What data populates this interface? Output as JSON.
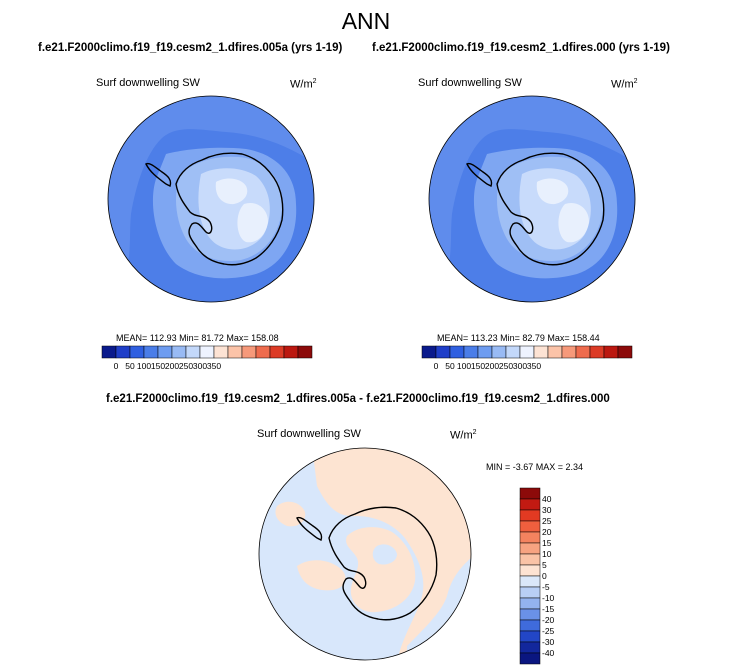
{
  "header": {
    "season": "ANN"
  },
  "panel_left": {
    "case_title": "f.e21.F2000climo.f19_f19.cesm2_1.dfires.005a (yrs 1-19)",
    "variable": "Surf downwelling SW",
    "units_base": "W/m",
    "units_exp": "2",
    "stats": "MEAN= 112.93  Min=  81.72  Max= 158.08"
  },
  "panel_right": {
    "case_title": "f.e21.F2000climo.f19_f19.cesm2_1.dfires.000 (yrs 1-19)",
    "variable": "Surf downwelling SW",
    "units_base": "W/m",
    "units_exp": "2",
    "stats": "MEAN= 113.23  Min=  82.79  Max= 158.44"
  },
  "panel_diff": {
    "case_title": "f.e21.F2000climo.f19_f19.cesm2_1.dfires.005a - f.e21.F2000climo.f19_f19.cesm2_1.dfires.000",
    "variable": "Surf downwelling SW",
    "units_base": "W/m",
    "units_exp": "2",
    "stats": "MIN =  -3.67 MAX =   2.34"
  },
  "colorbar_abs": {
    "tick_labels": [
      "0",
      "50",
      "100",
      "150",
      "200",
      "250",
      "300",
      "350"
    ],
    "colors": [
      "#0a1a8c",
      "#1f3ec8",
      "#2f5fe0",
      "#4a7de8",
      "#6e9cf0",
      "#98baf4",
      "#c3d8fa",
      "#eef3ff",
      "#fde3d4",
      "#fbc3a8",
      "#f6997a",
      "#ee6b4d",
      "#dc3b26",
      "#bb1810",
      "#8c0a0a"
    ]
  },
  "colorbar_diff": {
    "tick_labels": [
      "40",
      "30",
      "25",
      "20",
      "15",
      "10",
      "5",
      "0",
      "-5",
      "-10",
      "-15",
      "-20",
      "-25",
      "-30",
      "-40"
    ],
    "colors": [
      "#8c0a0a",
      "#c21a12",
      "#e23a22",
      "#ef5f3e",
      "#f4835f",
      "#f7a381",
      "#fac3a6",
      "#fde3d2",
      "#dbe8f9",
      "#b8cff5",
      "#93b3ef",
      "#6a91e8",
      "#3f6bdc",
      "#2246c6",
      "#12279c",
      "#0a1680"
    ]
  },
  "map_colors": {
    "ocean_dark": "#4d7ee8",
    "ocean_mid": "#6e9af0",
    "land_light": "#9fbff5",
    "plateau": "#c8dbfb",
    "diff_neg": "#d8e7fb",
    "diff_pos": "#fde4d2"
  }
}
